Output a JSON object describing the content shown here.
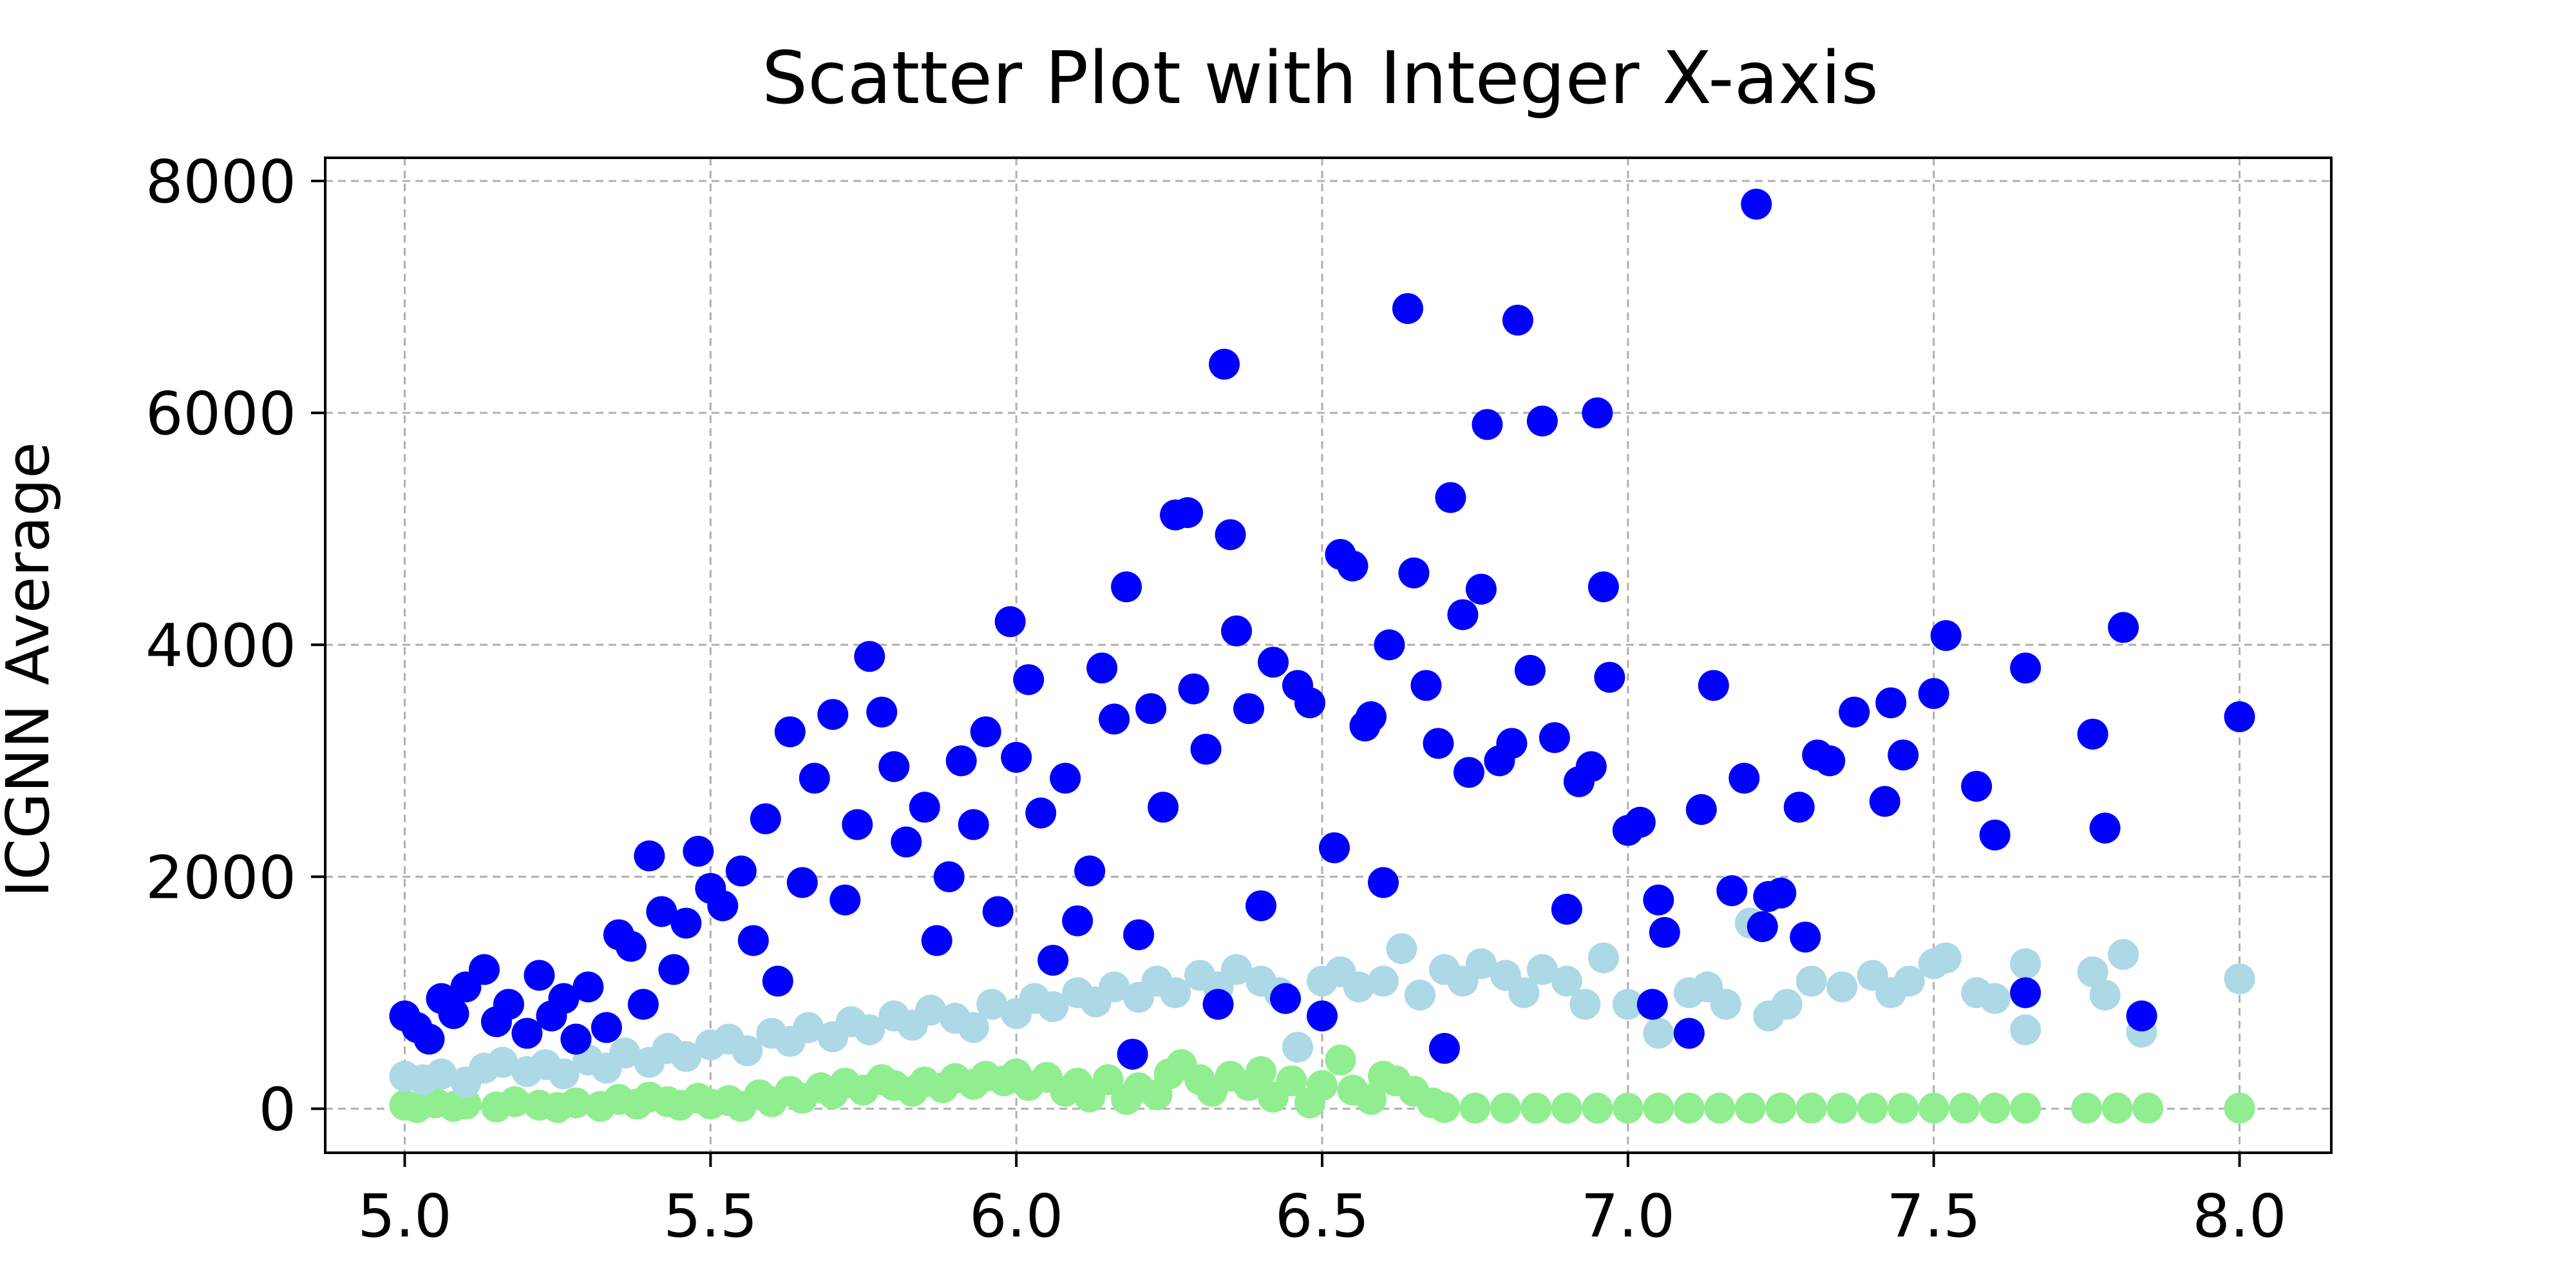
{
  "chart_data": {
    "type": "scatter",
    "title": "Scatter Plot with Integer X-axis",
    "xlabel": "",
    "ylabel": "ICGNN Average",
    "xlim": [
      4.87,
      8.15
    ],
    "ylim": [
      -380,
      8200
    ],
    "xticks": [
      5.0,
      5.5,
      6.0,
      6.5,
      7.0,
      7.5,
      8.0
    ],
    "xtick_labels": [
      "5.0",
      "5.5",
      "6.0",
      "6.5",
      "7.0",
      "7.5",
      "8.0"
    ],
    "yticks": [
      0,
      2000,
      4000,
      6000,
      8000
    ],
    "ytick_labels": [
      "0",
      "2000",
      "4000",
      "6000",
      "8000"
    ],
    "grid": true,
    "series": [
      {
        "color": "#90ee90",
        "points": [
          [
            5.0,
            30
          ],
          [
            5.02,
            10
          ],
          [
            5.05,
            50
          ],
          [
            5.08,
            20
          ],
          [
            5.1,
            40
          ],
          [
            5.15,
            15
          ],
          [
            5.18,
            60
          ],
          [
            5.22,
            30
          ],
          [
            5.25,
            10
          ],
          [
            5.28,
            50
          ],
          [
            5.32,
            20
          ],
          [
            5.35,
            80
          ],
          [
            5.38,
            40
          ],
          [
            5.4,
            100
          ],
          [
            5.43,
            60
          ],
          [
            5.45,
            30
          ],
          [
            5.48,
            90
          ],
          [
            5.5,
            40
          ],
          [
            5.53,
            70
          ],
          [
            5.55,
            20
          ],
          [
            5.58,
            120
          ],
          [
            5.6,
            60
          ],
          [
            5.63,
            150
          ],
          [
            5.65,
            90
          ],
          [
            5.68,
            180
          ],
          [
            5.7,
            130
          ],
          [
            5.72,
            220
          ],
          [
            5.75,
            160
          ],
          [
            5.78,
            250
          ],
          [
            5.8,
            200
          ],
          [
            5.83,
            150
          ],
          [
            5.85,
            230
          ],
          [
            5.88,
            180
          ],
          [
            5.9,
            260
          ],
          [
            5.93,
            210
          ],
          [
            5.95,
            280
          ],
          [
            5.98,
            240
          ],
          [
            6.0,
            300
          ],
          [
            6.02,
            200
          ],
          [
            6.05,
            270
          ],
          [
            6.08,
            150
          ],
          [
            6.1,
            220
          ],
          [
            6.12,
            100
          ],
          [
            6.15,
            250
          ],
          [
            6.18,
            80
          ],
          [
            6.2,
            180
          ],
          [
            6.23,
            120
          ],
          [
            6.25,
            300
          ],
          [
            6.27,
            380
          ],
          [
            6.3,
            250
          ],
          [
            6.32,
            150
          ],
          [
            6.35,
            280
          ],
          [
            6.38,
            200
          ],
          [
            6.4,
            320
          ],
          [
            6.42,
            100
          ],
          [
            6.45,
            240
          ],
          [
            6.48,
            50
          ],
          [
            6.5,
            200
          ],
          [
            6.53,
            420
          ],
          [
            6.55,
            160
          ],
          [
            6.58,
            80
          ],
          [
            6.6,
            280
          ],
          [
            6.62,
            240
          ],
          [
            6.65,
            150
          ],
          [
            6.68,
            50
          ],
          [
            6.7,
            10
          ],
          [
            6.75,
            5
          ],
          [
            6.8,
            5
          ],
          [
            6.85,
            5
          ],
          [
            6.9,
            5
          ],
          [
            6.95,
            5
          ],
          [
            7.0,
            5
          ],
          [
            7.05,
            5
          ],
          [
            7.1,
            5
          ],
          [
            7.15,
            5
          ],
          [
            7.2,
            5
          ],
          [
            7.25,
            5
          ],
          [
            7.3,
            5
          ],
          [
            7.35,
            5
          ],
          [
            7.4,
            5
          ],
          [
            7.45,
            5
          ],
          [
            7.5,
            5
          ],
          [
            7.55,
            5
          ],
          [
            7.6,
            5
          ],
          [
            7.65,
            5
          ],
          [
            7.75,
            5
          ],
          [
            7.8,
            5
          ],
          [
            7.85,
            5
          ],
          [
            8.0,
            5
          ]
        ]
      },
      {
        "color": "#add8e6",
        "points": [
          [
            5.0,
            280
          ],
          [
            5.03,
            250
          ],
          [
            5.06,
            300
          ],
          [
            5.1,
            230
          ],
          [
            5.13,
            350
          ],
          [
            5.16,
            400
          ],
          [
            5.2,
            320
          ],
          [
            5.23,
            380
          ],
          [
            5.26,
            300
          ],
          [
            5.3,
            420
          ],
          [
            5.33,
            350
          ],
          [
            5.36,
            480
          ],
          [
            5.4,
            400
          ],
          [
            5.43,
            520
          ],
          [
            5.46,
            450
          ],
          [
            5.5,
            550
          ],
          [
            5.53,
            600
          ],
          [
            5.56,
            500
          ],
          [
            5.6,
            650
          ],
          [
            5.63,
            580
          ],
          [
            5.66,
            700
          ],
          [
            5.7,
            620
          ],
          [
            5.73,
            750
          ],
          [
            5.76,
            680
          ],
          [
            5.8,
            800
          ],
          [
            5.83,
            720
          ],
          [
            5.86,
            850
          ],
          [
            5.9,
            780
          ],
          [
            5.93,
            700
          ],
          [
            5.96,
            900
          ],
          [
            6.0,
            820
          ],
          [
            6.03,
            950
          ],
          [
            6.06,
            880
          ],
          [
            6.1,
            1000
          ],
          [
            6.13,
            920
          ],
          [
            6.16,
            1050
          ],
          [
            6.2,
            960
          ],
          [
            6.23,
            1100
          ],
          [
            6.26,
            1000
          ],
          [
            6.3,
            1150
          ],
          [
            6.33,
            1050
          ],
          [
            6.36,
            1200
          ],
          [
            6.4,
            1100
          ],
          [
            6.43,
            1000
          ],
          [
            6.46,
            530
          ],
          [
            6.5,
            1100
          ],
          [
            6.53,
            1180
          ],
          [
            6.56,
            1050
          ],
          [
            6.6,
            1100
          ],
          [
            6.63,
            1380
          ],
          [
            6.66,
            980
          ],
          [
            6.7,
            1200
          ],
          [
            6.73,
            1100
          ],
          [
            6.76,
            1250
          ],
          [
            6.8,
            1150
          ],
          [
            6.83,
            1000
          ],
          [
            6.86,
            1200
          ],
          [
            6.9,
            1100
          ],
          [
            6.93,
            900
          ],
          [
            6.96,
            1300
          ],
          [
            7.0,
            900
          ],
          [
            7.05,
            650
          ],
          [
            7.1,
            1000
          ],
          [
            7.13,
            1050
          ],
          [
            7.16,
            900
          ],
          [
            7.2,
            1600
          ],
          [
            7.23,
            800
          ],
          [
            7.26,
            900
          ],
          [
            7.3,
            1100
          ],
          [
            7.35,
            1050
          ],
          [
            7.4,
            1150
          ],
          [
            7.43,
            1000
          ],
          [
            7.46,
            1100
          ],
          [
            7.5,
            1250
          ],
          [
            7.52,
            1300
          ],
          [
            7.57,
            1000
          ],
          [
            7.6,
            950
          ],
          [
            7.65,
            1250
          ],
          [
            7.65,
            680
          ],
          [
            7.76,
            1180
          ],
          [
            7.78,
            980
          ],
          [
            7.81,
            1330
          ],
          [
            7.84,
            660
          ],
          [
            8.0,
            1120
          ]
        ]
      },
      {
        "color": "#0000ff",
        "points": [
          [
            5.0,
            800
          ],
          [
            5.02,
            700
          ],
          [
            5.04,
            600
          ],
          [
            5.06,
            950
          ],
          [
            5.08,
            820
          ],
          [
            5.1,
            1050
          ],
          [
            5.13,
            1200
          ],
          [
            5.15,
            750
          ],
          [
            5.17,
            900
          ],
          [
            5.2,
            650
          ],
          [
            5.22,
            1150
          ],
          [
            5.24,
            800
          ],
          [
            5.26,
            950
          ],
          [
            5.28,
            600
          ],
          [
            5.3,
            1050
          ],
          [
            5.33,
            700
          ],
          [
            5.35,
            1500
          ],
          [
            5.37,
            1400
          ],
          [
            5.39,
            900
          ],
          [
            5.4,
            2180
          ],
          [
            5.42,
            1700
          ],
          [
            5.44,
            1200
          ],
          [
            5.46,
            1600
          ],
          [
            5.48,
            2220
          ],
          [
            5.5,
            1900
          ],
          [
            5.52,
            1750
          ],
          [
            5.55,
            2050
          ],
          [
            5.57,
            1450
          ],
          [
            5.59,
            2500
          ],
          [
            5.61,
            1100
          ],
          [
            5.63,
            3250
          ],
          [
            5.65,
            1950
          ],
          [
            5.67,
            2850
          ],
          [
            5.7,
            3400
          ],
          [
            5.72,
            1800
          ],
          [
            5.74,
            2450
          ],
          [
            5.76,
            3900
          ],
          [
            5.78,
            3420
          ],
          [
            5.8,
            2950
          ],
          [
            5.82,
            2300
          ],
          [
            5.85,
            2600
          ],
          [
            5.87,
            1450
          ],
          [
            5.89,
            2000
          ],
          [
            5.91,
            3000
          ],
          [
            5.93,
            2450
          ],
          [
            5.95,
            3250
          ],
          [
            5.97,
            1700
          ],
          [
            5.99,
            4200
          ],
          [
            6.0,
            3030
          ],
          [
            6.02,
            3700
          ],
          [
            6.04,
            2550
          ],
          [
            6.06,
            1280
          ],
          [
            6.08,
            2850
          ],
          [
            6.1,
            1620
          ],
          [
            6.12,
            2050
          ],
          [
            6.14,
            3800
          ],
          [
            6.16,
            3360
          ],
          [
            6.18,
            4500
          ],
          [
            6.19,
            470
          ],
          [
            6.2,
            1500
          ],
          [
            6.22,
            3450
          ],
          [
            6.24,
            2600
          ],
          [
            6.26,
            5120
          ],
          [
            6.28,
            5140
          ],
          [
            6.29,
            3620
          ],
          [
            6.31,
            3100
          ],
          [
            6.33,
            900
          ],
          [
            6.34,
            6420
          ],
          [
            6.35,
            4950
          ],
          [
            6.36,
            4120
          ],
          [
            6.38,
            3450
          ],
          [
            6.4,
            1750
          ],
          [
            6.42,
            3850
          ],
          [
            6.44,
            950
          ],
          [
            6.46,
            3650
          ],
          [
            6.48,
            3500
          ],
          [
            6.5,
            800
          ],
          [
            6.52,
            2250
          ],
          [
            6.53,
            4780
          ],
          [
            6.55,
            4680
          ],
          [
            6.57,
            3300
          ],
          [
            6.58,
            3380
          ],
          [
            6.6,
            1950
          ],
          [
            6.61,
            4000
          ],
          [
            6.64,
            6900
          ],
          [
            6.65,
            4620
          ],
          [
            6.67,
            3650
          ],
          [
            6.69,
            3150
          ],
          [
            6.7,
            520
          ],
          [
            6.71,
            5270
          ],
          [
            6.73,
            4260
          ],
          [
            6.74,
            2900
          ],
          [
            6.76,
            4480
          ],
          [
            6.77,
            5900
          ],
          [
            6.79,
            3000
          ],
          [
            6.81,
            3150
          ],
          [
            6.82,
            6800
          ],
          [
            6.84,
            3780
          ],
          [
            6.86,
            5930
          ],
          [
            6.88,
            3200
          ],
          [
            6.9,
            1720
          ],
          [
            6.92,
            2820
          ],
          [
            6.94,
            2950
          ],
          [
            6.95,
            6000
          ],
          [
            6.96,
            4500
          ],
          [
            6.97,
            3720
          ],
          [
            7.0,
            2400
          ],
          [
            7.02,
            2470
          ],
          [
            7.04,
            900
          ],
          [
            7.05,
            1800
          ],
          [
            7.06,
            1520
          ],
          [
            7.1,
            650
          ],
          [
            7.12,
            2580
          ],
          [
            7.14,
            3650
          ],
          [
            7.17,
            1880
          ],
          [
            7.19,
            2850
          ],
          [
            7.21,
            7800
          ],
          [
            7.22,
            1570
          ],
          [
            7.23,
            1830
          ],
          [
            7.25,
            1860
          ],
          [
            7.28,
            2600
          ],
          [
            7.29,
            1480
          ],
          [
            7.31,
            3050
          ],
          [
            7.33,
            3000
          ],
          [
            7.37,
            3420
          ],
          [
            7.42,
            2650
          ],
          [
            7.43,
            3500
          ],
          [
            7.45,
            3050
          ],
          [
            7.5,
            3580
          ],
          [
            7.52,
            4080
          ],
          [
            7.57,
            2780
          ],
          [
            7.6,
            2360
          ],
          [
            7.65,
            1000
          ],
          [
            7.65,
            3800
          ],
          [
            7.76,
            3230
          ],
          [
            7.78,
            2420
          ],
          [
            7.81,
            4150
          ],
          [
            7.84,
            800
          ],
          [
            8.0,
            3380
          ]
        ]
      }
    ]
  }
}
